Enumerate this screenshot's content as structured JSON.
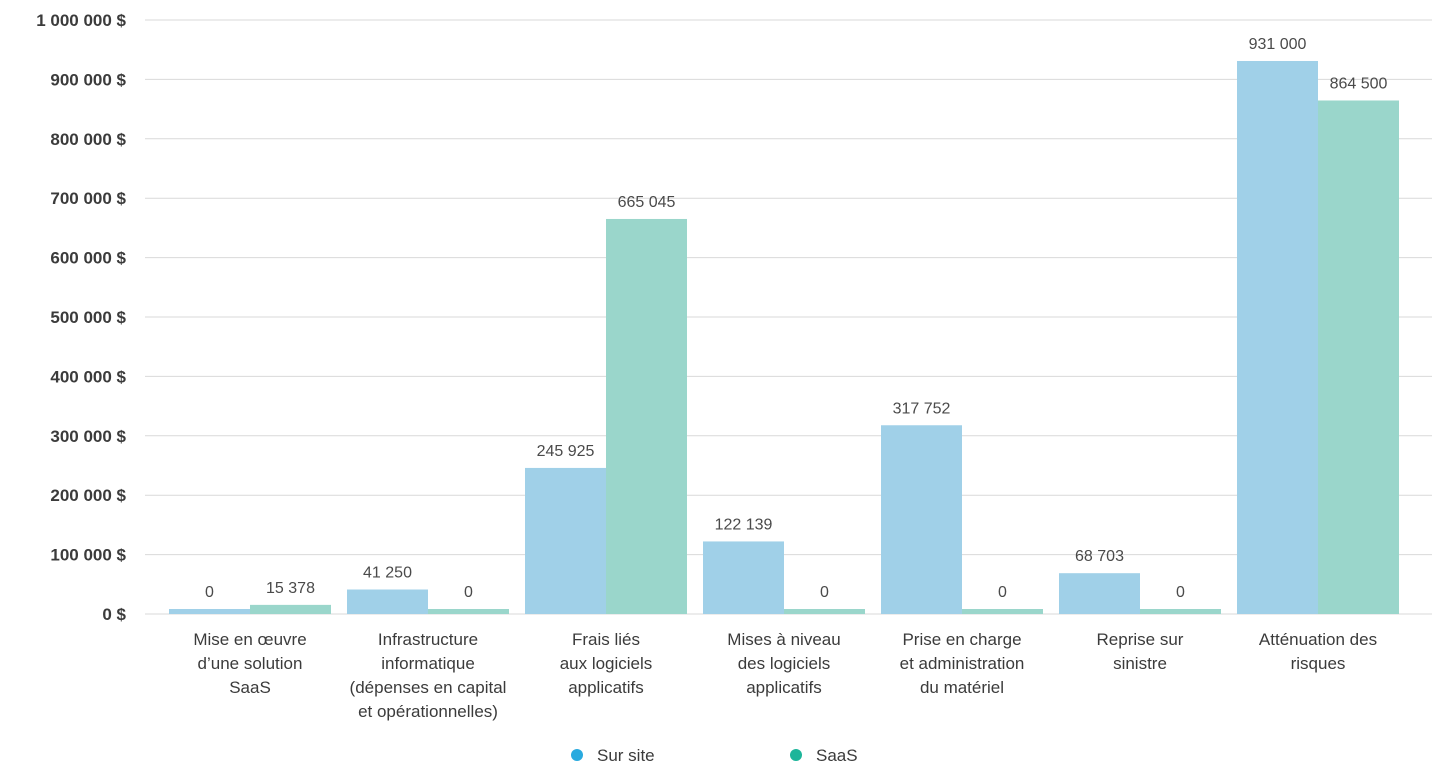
{
  "chart_data": {
    "type": "bar",
    "categories": [
      [
        "Mise en œuvre",
        "d’une solution",
        "SaaS"
      ],
      [
        "Infrastructure",
        "informatique",
        "(dépenses en capital",
        "et opérationnelles)"
      ],
      [
        "Frais liés",
        "aux logiciels",
        "applicatifs"
      ],
      [
        "Mises à niveau",
        "des logiciels",
        "applicatifs"
      ],
      [
        "Prise en charge",
        "et administration",
        "du matériel"
      ],
      [
        "Reprise sur",
        "sinistre"
      ],
      [
        "Atténuation des",
        "risques"
      ]
    ],
    "series": [
      {
        "name": "Sur site",
        "values": [
          0,
          41250,
          245925,
          122139,
          317752,
          68703,
          931000
        ],
        "labels": [
          "0",
          "41 250",
          "245 925",
          "122 139",
          "317 752",
          "68 703",
          "931 000"
        ]
      },
      {
        "name": "SaaS",
        "values": [
          15378,
          0,
          665045,
          0,
          0,
          0,
          864500
        ],
        "labels": [
          "15 378",
          "0",
          "665 045",
          "0",
          "0",
          "0",
          "864 500"
        ]
      }
    ],
    "yticks": [
      {
        "value": 0,
        "label": "0 $"
      },
      {
        "value": 100000,
        "label": "100 000 $"
      },
      {
        "value": 200000,
        "label": "200 000 $"
      },
      {
        "value": 300000,
        "label": "300 000 $"
      },
      {
        "value": 400000,
        "label": "400 000 $"
      },
      {
        "value": 500000,
        "label": "500 000 $"
      },
      {
        "value": 600000,
        "label": "600 000 $"
      },
      {
        "value": 700000,
        "label": "700 000 $"
      },
      {
        "value": 800000,
        "label": "800 000 $"
      },
      {
        "value": 900000,
        "label": "900 000 $"
      },
      {
        "value": 1000000,
        "label": "1 000 000 $"
      }
    ],
    "ylim": [
      0,
      1000000
    ],
    "grid": true,
    "legend_position": "bottom",
    "title": "",
    "xlabel": "",
    "ylabel": ""
  },
  "colors": {
    "sur_site": "#a0d0e8",
    "saas": "#9ad6cb",
    "legend_sur_site": "#29aadf",
    "legend_saas": "#1db59a"
  }
}
